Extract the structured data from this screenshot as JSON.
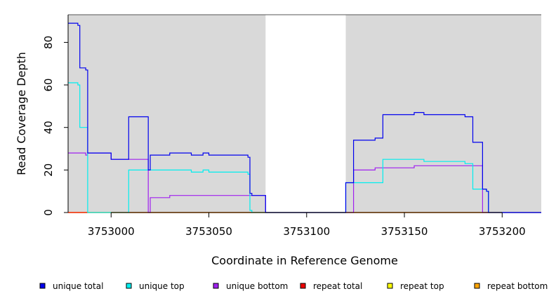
{
  "chart_data": {
    "type": "line",
    "title": "",
    "xlabel": "Coordinate in Reference Genome",
    "ylabel": "Read Coverage Depth",
    "xlim": [
      3752978,
      3753220
    ],
    "ylim": [
      0,
      93
    ],
    "xticks": [
      3753000,
      3753050,
      3753100,
      3753150,
      3753200
    ],
    "xtick_labels": [
      "3753000",
      "3753050",
      "3753100",
      "3753150",
      "3753200"
    ],
    "yticks": [
      0,
      20,
      40,
      60,
      80
    ],
    "ytick_labels": [
      "0",
      "20",
      "40",
      "60",
      "80"
    ],
    "shaded_regions": [
      [
        3752978,
        3753079
      ],
      [
        3753120,
        3753220
      ]
    ],
    "shade_color": "#d9d9d9",
    "legend_position": "bottom",
    "series": [
      {
        "name": "unique total",
        "color": "#0000ee",
        "x": [
          3752978,
          3752982,
          3752983,
          3752984,
          3752985,
          3752987,
          3752988,
          3752998,
          3753000,
          3753007,
          3753009,
          3753018,
          3753019,
          3753020,
          3753030,
          3753040,
          3753041,
          3753047,
          3753050,
          3753057,
          3753061,
          3753070,
          3753071,
          3753072,
          3753079,
          3753080,
          3753100,
          3753115,
          3753120,
          3753124,
          3753130,
          3753135,
          3753139,
          3753150,
          3753155,
          3753160,
          3753180,
          3753181,
          3753185,
          3753190,
          3753191,
          3753192,
          3753193,
          3753220
        ],
        "y": [
          89,
          89,
          88,
          68,
          68,
          67,
          28,
          28,
          25,
          25,
          45,
          45,
          20,
          27,
          28,
          28,
          27,
          28,
          27,
          27,
          27,
          26,
          9,
          8,
          0,
          0,
          0,
          0,
          14,
          34,
          34,
          35,
          46,
          46,
          47,
          46,
          46,
          45,
          33,
          11,
          11,
          10,
          0,
          0
        ]
      },
      {
        "name": "unique top",
        "color": "#00eeee",
        "x": [
          3752978,
          3752982,
          3752983,
          3752984,
          3752985,
          3752987,
          3752988,
          3752998,
          3753000,
          3753007,
          3753009,
          3753018,
          3753019,
          3753020,
          3753030,
          3753040,
          3753041,
          3753047,
          3753050,
          3753057,
          3753061,
          3753070,
          3753071,
          3753072,
          3753079,
          3753080,
          3753100,
          3753115,
          3753120,
          3753124,
          3753130,
          3753135,
          3753139,
          3753150,
          3753155,
          3753160,
          3753180,
          3753181,
          3753185,
          3753190,
          3753191,
          3753192,
          3753193,
          3753220
        ],
        "y": [
          61,
          61,
          60,
          40,
          40,
          40,
          0,
          0,
          0,
          0,
          20,
          20,
          20,
          20,
          20,
          20,
          19,
          20,
          19,
          19,
          19,
          18,
          1,
          0,
          0,
          0,
          0,
          0,
          14,
          14,
          14,
          14,
          25,
          25,
          25,
          24,
          24,
          23,
          11,
          11,
          11,
          10,
          0,
          0
        ]
      },
      {
        "name": "unique bottom",
        "color": "#a020f0",
        "x": [
          3752978,
          3752982,
          3752983,
          3752984,
          3752985,
          3752987,
          3752988,
          3752998,
          3753000,
          3753007,
          3753009,
          3753018,
          3753019,
          3753020,
          3753030,
          3753040,
          3753041,
          3753047,
          3753050,
          3753057,
          3753061,
          3753070,
          3753071,
          3753072,
          3753079,
          3753080,
          3753100,
          3753115,
          3753120,
          3753124,
          3753130,
          3753135,
          3753139,
          3753150,
          3753155,
          3753160,
          3753180,
          3753181,
          3753185,
          3753190,
          3753191,
          3753192,
          3753193,
          3753220
        ],
        "y": [
          28,
          28,
          28,
          28,
          28,
          27,
          28,
          28,
          25,
          25,
          25,
          25,
          0,
          7,
          8,
          8,
          8,
          8,
          8,
          8,
          8,
          8,
          8,
          8,
          0,
          0,
          0,
          0,
          0,
          20,
          20,
          21,
          21,
          21,
          22,
          22,
          22,
          22,
          22,
          0,
          0,
          0,
          0,
          0
        ]
      },
      {
        "name": "repeat total",
        "color": "#ee0000",
        "x": [
          3752978,
          3753220
        ],
        "y": [
          0,
          0
        ]
      },
      {
        "name": "repeat top",
        "color": "#ffff00",
        "x": [
          3752978,
          3753220
        ],
        "y": [
          0,
          0
        ]
      },
      {
        "name": "repeat bottom",
        "color": "#ffa500",
        "x": [
          3752978,
          3753220
        ],
        "y": [
          0,
          0
        ]
      }
    ]
  }
}
